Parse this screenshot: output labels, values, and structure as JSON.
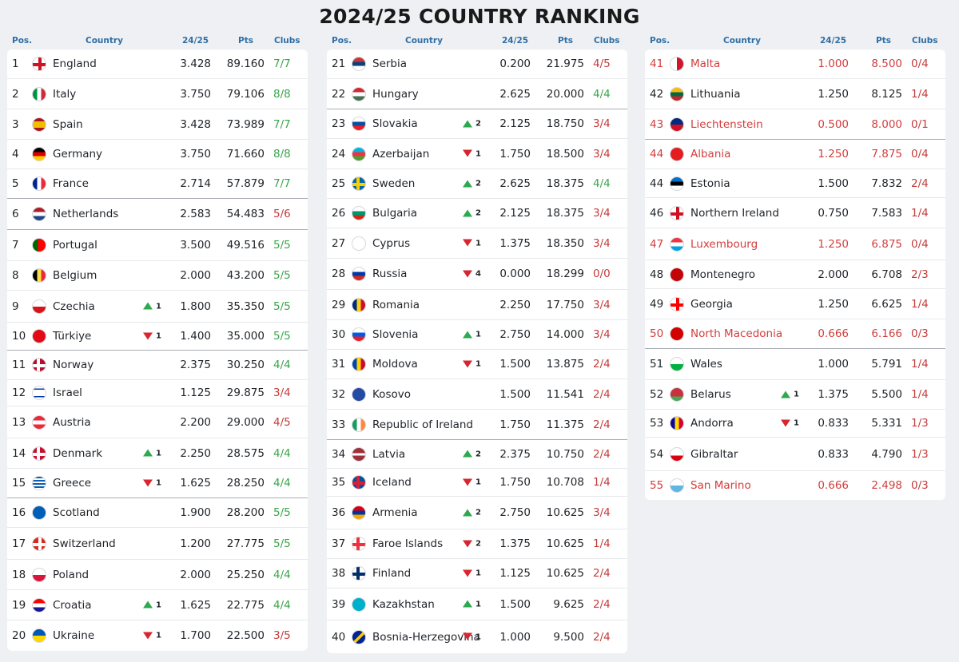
{
  "title": "2024/25 COUNTRY RANKING",
  "headers": {
    "pos": "Pos.",
    "country": "Country",
    "coef": "24/25",
    "pts": "Pts",
    "clubs": "Clubs"
  },
  "colors": {
    "green": "#3aa54a",
    "red": "#c43b3b",
    "accent": "#2f6ea5"
  },
  "columns": [
    {
      "rows": [
        {
          "pos": "1",
          "flag": "flag-england",
          "name": "England",
          "move": "",
          "coef": "3.428",
          "pts": "89.160",
          "clubs": "7/7",
          "cc": "green"
        },
        {
          "pos": "2",
          "flag": "flag-italy",
          "name": "Italy",
          "move": "",
          "coef": "3.750",
          "pts": "79.106",
          "clubs": "8/8",
          "cc": "green"
        },
        {
          "pos": "3",
          "flag": "flag-spain",
          "name": "Spain",
          "move": "",
          "coef": "3.428",
          "pts": "73.989",
          "clubs": "7/7",
          "cc": "green"
        },
        {
          "pos": "4",
          "flag": "flag-germany",
          "name": "Germany",
          "move": "",
          "coef": "3.750",
          "pts": "71.660",
          "clubs": "8/8",
          "cc": "green"
        },
        {
          "pos": "5",
          "flag": "flag-france",
          "name": "France",
          "move": "",
          "coef": "2.714",
          "pts": "57.879",
          "clubs": "7/7",
          "cc": "green"
        },
        {
          "pos": "6",
          "flag": "flag-netherlands",
          "name": "Netherlands",
          "move": "",
          "coef": "2.583",
          "pts": "54.483",
          "clubs": "5/6",
          "cc": "red"
        },
        {
          "pos": "7",
          "flag": "flag-portugal",
          "name": "Portugal",
          "move": "",
          "coef": "3.500",
          "pts": "49.516",
          "clubs": "5/5",
          "cc": "green"
        },
        {
          "pos": "8",
          "flag": "flag-belgium",
          "name": "Belgium",
          "move": "",
          "coef": "2.000",
          "pts": "43.200",
          "clubs": "5/5",
          "cc": "green"
        },
        {
          "pos": "9",
          "flag": "flag-czechia",
          "name": "Czechia",
          "move": "up",
          "moveval": "1",
          "coef": "1.800",
          "pts": "35.350",
          "clubs": "5/5",
          "cc": "green"
        },
        {
          "pos": "10",
          "flag": "flag-turkiye",
          "name": "Türkiye",
          "move": "down",
          "moveval": "1",
          "coef": "1.400",
          "pts": "35.000",
          "clubs": "5/5",
          "cc": "green"
        },
        {
          "pos": "11",
          "flag": "flag-norway",
          "name": "Norway",
          "move": "",
          "coef": "2.375",
          "pts": "30.250",
          "clubs": "4/4",
          "cc": "green"
        },
        {
          "pos": "12",
          "flag": "flag-israel",
          "name": "Israel",
          "move": "",
          "coef": "1.125",
          "pts": "29.875",
          "clubs": "3/4",
          "cc": "red"
        },
        {
          "pos": "13",
          "flag": "flag-austria",
          "name": "Austria",
          "move": "",
          "coef": "2.200",
          "pts": "29.000",
          "clubs": "4/5",
          "cc": "red"
        },
        {
          "pos": "14",
          "flag": "flag-denmark",
          "name": "Denmark",
          "move": "up",
          "moveval": "1",
          "coef": "2.250",
          "pts": "28.575",
          "clubs": "4/4",
          "cc": "green"
        },
        {
          "pos": "15",
          "flag": "flag-greece",
          "name": "Greece",
          "move": "down",
          "moveval": "1",
          "coef": "1.625",
          "pts": "28.250",
          "clubs": "4/4",
          "cc": "green"
        },
        {
          "pos": "16",
          "flag": "flag-scotland",
          "name": "Scotland",
          "move": "",
          "coef": "1.900",
          "pts": "28.200",
          "clubs": "5/5",
          "cc": "green"
        },
        {
          "pos": "17",
          "flag": "flag-switzerland",
          "name": "Switzerland",
          "move": "",
          "coef": "1.200",
          "pts": "27.775",
          "clubs": "5/5",
          "cc": "green"
        },
        {
          "pos": "18",
          "flag": "flag-poland",
          "name": "Poland",
          "move": "",
          "coef": "2.000",
          "pts": "25.250",
          "clubs": "4/4",
          "cc": "green"
        },
        {
          "pos": "19",
          "flag": "flag-croatia",
          "name": "Croatia",
          "move": "up",
          "moveval": "1",
          "coef": "1.625",
          "pts": "22.775",
          "clubs": "4/4",
          "cc": "green"
        },
        {
          "pos": "20",
          "flag": "flag-ukraine",
          "name": "Ukraine",
          "move": "down",
          "moveval": "1",
          "coef": "1.700",
          "pts": "22.500",
          "clubs": "3/5",
          "cc": "red"
        }
      ]
    },
    {
      "rows": [
        {
          "pos": "21",
          "flag": "flag-serbia",
          "name": "Serbia",
          "move": "",
          "coef": "0.200",
          "pts": "21.975",
          "clubs": "4/5",
          "cc": "red"
        },
        {
          "pos": "22",
          "flag": "flag-hungary",
          "name": "Hungary",
          "move": "",
          "coef": "2.625",
          "pts": "20.000",
          "clubs": "4/4",
          "cc": "green"
        },
        {
          "pos": "23",
          "flag": "flag-slovakia",
          "name": "Slovakia",
          "move": "up",
          "moveval": "2",
          "coef": "2.125",
          "pts": "18.750",
          "clubs": "3/4",
          "cc": "red"
        },
        {
          "pos": "24",
          "flag": "flag-azerbaijan",
          "name": "Azerbaijan",
          "move": "down",
          "moveval": "1",
          "coef": "1.750",
          "pts": "18.500",
          "clubs": "3/4",
          "cc": "red"
        },
        {
          "pos": "25",
          "flag": "flag-sweden",
          "name": "Sweden",
          "move": "up",
          "moveval": "2",
          "coef": "2.625",
          "pts": "18.375",
          "clubs": "4/4",
          "cc": "green"
        },
        {
          "pos": "26",
          "flag": "flag-bulgaria",
          "name": "Bulgaria",
          "move": "up",
          "moveval": "2",
          "coef": "2.125",
          "pts": "18.375",
          "clubs": "3/4",
          "cc": "red"
        },
        {
          "pos": "27",
          "flag": "flag-cyprus",
          "name": "Cyprus",
          "move": "down",
          "moveval": "1",
          "coef": "1.375",
          "pts": "18.350",
          "clubs": "3/4",
          "cc": "red"
        },
        {
          "pos": "28",
          "flag": "flag-russia",
          "name": "Russia",
          "move": "down",
          "moveval": "4",
          "coef": "0.000",
          "pts": "18.299",
          "clubs": "0/0",
          "cc": "red"
        },
        {
          "pos": "29",
          "flag": "flag-romania",
          "name": "Romania",
          "move": "",
          "coef": "2.250",
          "pts": "17.750",
          "clubs": "3/4",
          "cc": "red"
        },
        {
          "pos": "30",
          "flag": "flag-slovenia",
          "name": "Slovenia",
          "move": "up",
          "moveval": "1",
          "coef": "2.750",
          "pts": "14.000",
          "clubs": "3/4",
          "cc": "red"
        },
        {
          "pos": "31",
          "flag": "flag-moldova",
          "name": "Moldova",
          "move": "down",
          "moveval": "1",
          "coef": "1.500",
          "pts": "13.875",
          "clubs": "2/4",
          "cc": "red"
        },
        {
          "pos": "32",
          "flag": "flag-kosovo",
          "name": "Kosovo",
          "move": "",
          "coef": "1.500",
          "pts": "11.541",
          "clubs": "2/4",
          "cc": "red"
        },
        {
          "pos": "33",
          "flag": "flag-ireland",
          "name": "Republic of Ireland",
          "move": "",
          "coef": "1.750",
          "pts": "11.375",
          "clubs": "2/4",
          "cc": "red"
        },
        {
          "pos": "34",
          "flag": "flag-latvia",
          "name": "Latvia",
          "move": "up",
          "moveval": "2",
          "coef": "2.375",
          "pts": "10.750",
          "clubs": "2/4",
          "cc": "red"
        },
        {
          "pos": "35",
          "flag": "flag-iceland",
          "name": "Iceland",
          "move": "down",
          "moveval": "1",
          "coef": "1.750",
          "pts": "10.708",
          "clubs": "1/4",
          "cc": "red"
        },
        {
          "pos": "36",
          "flag": "flag-armenia",
          "name": "Armenia",
          "move": "up",
          "moveval": "2",
          "coef": "2.750",
          "pts": "10.625",
          "clubs": "3/4",
          "cc": "red"
        },
        {
          "pos": "37",
          "flag": "flag-faroe",
          "name": "Faroe Islands",
          "move": "down",
          "moveval": "2",
          "coef": "1.375",
          "pts": "10.625",
          "clubs": "1/4",
          "cc": "red"
        },
        {
          "pos": "38",
          "flag": "flag-finland",
          "name": "Finland",
          "move": "down",
          "moveval": "1",
          "coef": "1.125",
          "pts": "10.625",
          "clubs": "2/4",
          "cc": "red"
        },
        {
          "pos": "39",
          "flag": "flag-kazakhstan",
          "name": "Kazakhstan",
          "move": "up",
          "moveval": "1",
          "coef": "1.500",
          "pts": "9.625",
          "clubs": "2/4",
          "cc": "red"
        },
        {
          "pos": "40",
          "flag": "flag-bosnia",
          "name": "Bosnia-Herzegovina",
          "move": "down",
          "moveval": "1",
          "coef": "1.000",
          "pts": "9.500",
          "clubs": "2/4",
          "cc": "red"
        }
      ]
    },
    {
      "rows": [
        {
          "pos": "41",
          "flag": "flag-malta",
          "name": "Malta",
          "move": "",
          "coef": "1.000",
          "pts": "8.500",
          "clubs": "0/4",
          "cc": "red",
          "red": true
        },
        {
          "pos": "42",
          "flag": "flag-lithuania",
          "name": "Lithuania",
          "move": "",
          "coef": "1.250",
          "pts": "8.125",
          "clubs": "1/4",
          "cc": "red"
        },
        {
          "pos": "43",
          "flag": "flag-liechtenstein",
          "name": "Liechtenstein",
          "move": "",
          "coef": "0.500",
          "pts": "8.000",
          "clubs": "0/1",
          "cc": "red",
          "red": true
        },
        {
          "pos": "44",
          "flag": "flag-albania",
          "name": "Albania",
          "move": "",
          "coef": "1.250",
          "pts": "7.875",
          "clubs": "0/4",
          "cc": "red",
          "red": true
        },
        {
          "pos": "44",
          "flag": "flag-estonia",
          "name": "Estonia",
          "move": "",
          "coef": "1.500",
          "pts": "7.832",
          "clubs": "2/4",
          "cc": "red"
        },
        {
          "pos": "46",
          "flag": "flag-northern-ireland",
          "name": "Northern Ireland",
          "move": "",
          "coef": "0.750",
          "pts": "7.583",
          "clubs": "1/4",
          "cc": "red"
        },
        {
          "pos": "47",
          "flag": "flag-luxembourg",
          "name": "Luxembourg",
          "move": "",
          "coef": "1.250",
          "pts": "6.875",
          "clubs": "0/4",
          "cc": "red",
          "red": true
        },
        {
          "pos": "48",
          "flag": "flag-montenegro",
          "name": "Montenegro",
          "move": "",
          "coef": "2.000",
          "pts": "6.708",
          "clubs": "2/3",
          "cc": "red"
        },
        {
          "pos": "49",
          "flag": "flag-georgia",
          "name": "Georgia",
          "move": "",
          "coef": "1.250",
          "pts": "6.625",
          "clubs": "1/4",
          "cc": "red"
        },
        {
          "pos": "50",
          "flag": "flag-north-macedonia",
          "name": "North Macedonia",
          "move": "",
          "coef": "0.666",
          "pts": "6.166",
          "clubs": "0/3",
          "cc": "red",
          "red": true
        },
        {
          "pos": "51",
          "flag": "flag-wales",
          "name": "Wales",
          "move": "",
          "coef": "1.000",
          "pts": "5.791",
          "clubs": "1/4",
          "cc": "red"
        },
        {
          "pos": "52",
          "flag": "flag-belarus",
          "name": "Belarus",
          "move": "up",
          "moveval": "1",
          "coef": "1.375",
          "pts": "5.500",
          "clubs": "1/4",
          "cc": "red"
        },
        {
          "pos": "53",
          "flag": "flag-andorra",
          "name": "Andorra",
          "move": "down",
          "moveval": "1",
          "coef": "0.833",
          "pts": "5.331",
          "clubs": "1/3",
          "cc": "red"
        },
        {
          "pos": "54",
          "flag": "flag-gibraltar",
          "name": "Gibraltar",
          "move": "",
          "coef": "0.833",
          "pts": "4.790",
          "clubs": "1/3",
          "cc": "red"
        },
        {
          "pos": "55",
          "flag": "flag-san-marino",
          "name": "San Marino",
          "move": "",
          "coef": "0.666",
          "pts": "2.498",
          "clubs": "0/3",
          "cc": "red",
          "red": true
        }
      ]
    }
  ]
}
